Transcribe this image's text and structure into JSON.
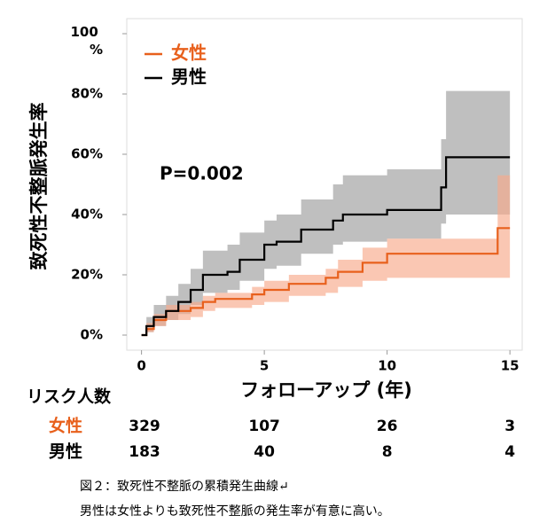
{
  "chart_data": {
    "type": "step",
    "y_label": "致死性不整脈発生率",
    "x_label": "フォローアップ (年)",
    "annotation": "P=0.002",
    "xlim": [
      -0.6,
      15.5
    ],
    "ylim": [
      -5,
      105
    ],
    "xticks": [
      0,
      5,
      10,
      15
    ],
    "yticks": [
      {
        "value": 0,
        "label": "0%"
      },
      {
        "value": 20,
        "label": "20%"
      },
      {
        "value": 40,
        "label": "40%"
      },
      {
        "value": 60,
        "label": "60%"
      },
      {
        "value": 80,
        "label": "80%"
      },
      {
        "value": 100,
        "label": "100 %"
      }
    ],
    "legend": "upper left",
    "series": [
      {
        "name": "女性",
        "color": "#e8601c",
        "band_color": "#f7a98a",
        "x": [
          0,
          0.2,
          0.5,
          1,
          2,
          2.5,
          3,
          4.5,
          5,
          6,
          7.5,
          8,
          9,
          10,
          14.5,
          15
        ],
        "values": [
          0,
          2,
          5,
          8,
          9,
          11,
          12,
          13.5,
          15,
          17,
          19,
          21,
          24,
          27,
          35.5,
          35.5
        ],
        "upper": [
          0,
          4,
          7,
          10,
          11,
          13,
          14,
          16,
          18,
          20,
          22,
          25,
          29,
          32,
          53,
          53
        ],
        "lower": [
          0,
          1,
          3,
          5,
          6,
          8,
          9,
          10,
          11,
          13,
          14,
          16,
          18,
          19,
          19,
          19
        ]
      },
      {
        "name": "男性",
        "color": "#000000",
        "band_color": "#b4b4b4",
        "x": [
          0,
          0.2,
          0.5,
          1,
          1.5,
          2,
          2.5,
          3.5,
          4,
          5,
          5.5,
          6.5,
          7.8,
          8.2,
          10,
          12.2,
          12.4,
          15
        ],
        "values": [
          0,
          3,
          6,
          8,
          11,
          15,
          20,
          21,
          25,
          30,
          31,
          35,
          38,
          40,
          41.5,
          49,
          59,
          59
        ],
        "upper": [
          0,
          6,
          10,
          13,
          17,
          22,
          28,
          30,
          34,
          38,
          40,
          45,
          50,
          53,
          55,
          65,
          81,
          81
        ],
        "lower": [
          0,
          1,
          3,
          5,
          7,
          10,
          14,
          15,
          18,
          22,
          23,
          27,
          30,
          31,
          32,
          37,
          40,
          40
        ]
      }
    ]
  },
  "risk_table": {
    "title": "リスク人数",
    "rows": [
      {
        "name": "女性",
        "color": "#e8601c",
        "values": [
          329,
          107,
          26,
          3
        ]
      },
      {
        "name": "男性",
        "color": "#000000",
        "values": [
          183,
          40,
          8,
          4
        ]
      }
    ]
  },
  "caption": [
    "図２：致死性不整脈の累積発生曲線↵",
    "男性は女性よりも致死性不整脈の発生率が有意に高い。"
  ]
}
